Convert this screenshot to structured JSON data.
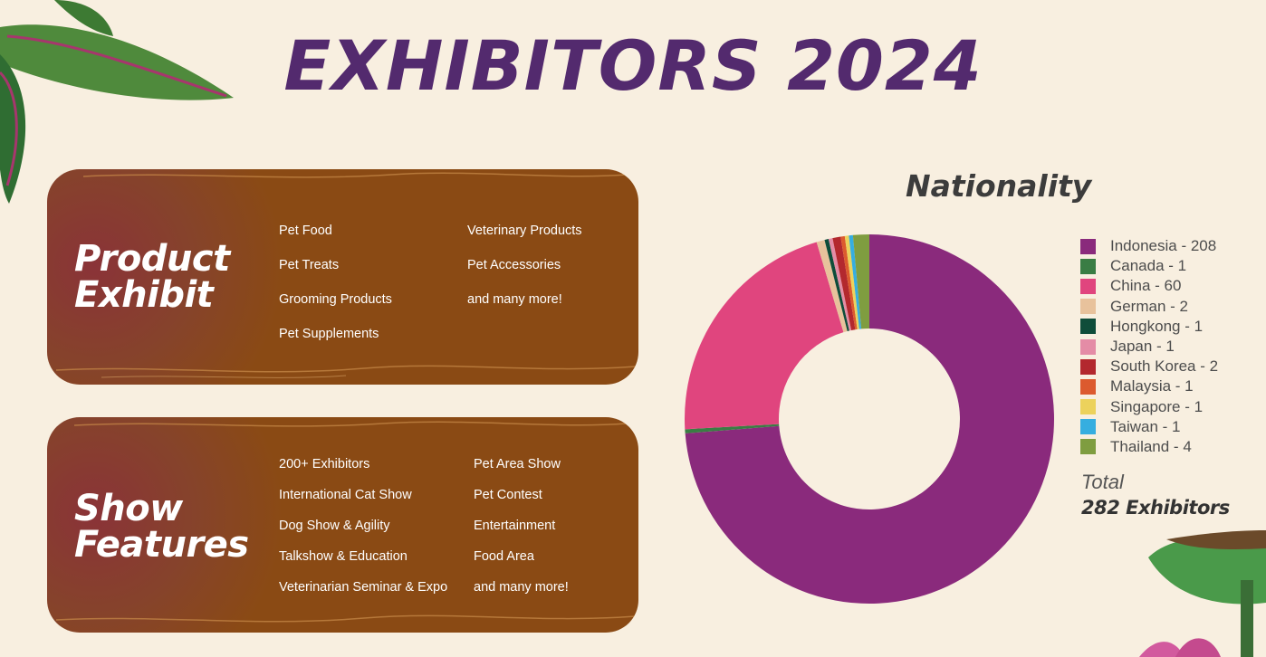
{
  "page": {
    "title": "EXHIBITORS 2024"
  },
  "product_exhibit": {
    "title": "Product\nExhibit",
    "col1": [
      "Pet Food",
      "Pet Treats",
      "Grooming Products",
      "Pet Supplements"
    ],
    "col2": [
      "Veterinary Products",
      "Pet Accessories",
      "and many more!"
    ]
  },
  "show_features": {
    "title": "Show\nFeatures",
    "col1": [
      "200+ Exhibitors",
      "International Cat Show",
      "Dog Show & Agility",
      "Talkshow & Education",
      "Veterinarian Seminar & Expo"
    ],
    "col2": [
      "Pet Area Show",
      "Pet Contest",
      "Entertainment",
      "Food Area",
      "and many more!"
    ]
  },
  "chart_data": {
    "type": "pie",
    "title": "Nationality",
    "donut": true,
    "legend_position": "right",
    "categories": [
      "Indonesia",
      "Canada",
      "China",
      "German",
      "Hongkong",
      "Japan",
      "South Korea",
      "Malaysia",
      "Singapore",
      "Taiwan",
      "Thailand"
    ],
    "values": [
      208,
      1,
      60,
      2,
      1,
      1,
      2,
      1,
      1,
      1,
      4
    ],
    "legend_labels": [
      "Indonesia - 208",
      "Canada - 1",
      "China - 60",
      "German - 2",
      "Hongkong - 1",
      "Japan - 1",
      "South Korea - 2",
      "Malaysia - 1",
      "Singapore - 1",
      "Taiwan - 1",
      "Thailand - 4"
    ],
    "colors": [
      "#8a2a7c",
      "#3a7d44",
      "#e0457e",
      "#e8c29c",
      "#0f4d3a",
      "#e48ca6",
      "#b3282e",
      "#dc5a2e",
      "#ecd25c",
      "#36aee0",
      "#7f9d40"
    ],
    "total_label": "Total",
    "total_value": "282 Exhibitors"
  }
}
